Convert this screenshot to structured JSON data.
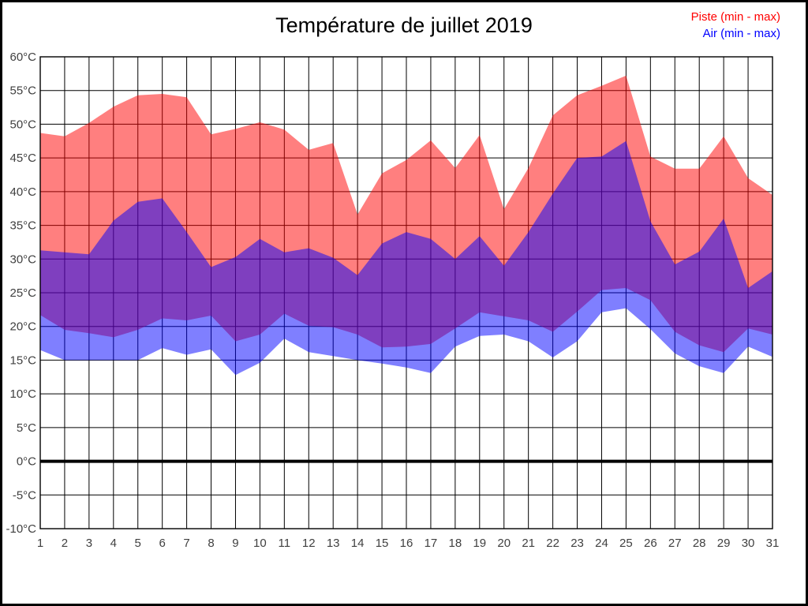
{
  "window": {
    "background": "#ffffff",
    "border_color": "#000000"
  },
  "header": {
    "title": "Température de juillet 2019"
  },
  "legend": {
    "items": [
      {
        "label": "Piste (min - max)",
        "color": "#ff0000"
      },
      {
        "label": "Air (min - max)",
        "color": "#0000ff"
      }
    ]
  },
  "chart_data": {
    "type": "area",
    "title": "Température de juillet 2019",
    "xlabel": "",
    "ylabel": "",
    "x": [
      1,
      2,
      3,
      4,
      5,
      6,
      7,
      8,
      9,
      10,
      11,
      12,
      13,
      14,
      15,
      16,
      17,
      18,
      19,
      20,
      21,
      22,
      23,
      24,
      25,
      26,
      27,
      28,
      29,
      30,
      31
    ],
    "series": [
      {
        "name": "Piste (min - max)",
        "fill": "rgba(255,0,0,0.5)",
        "legend_color": "#ff0000",
        "max": [
          48.7,
          48.2,
          50.2,
          52.6,
          54.3,
          54.5,
          54.0,
          48.5,
          49.3,
          50.3,
          49.2,
          46.2,
          47.2,
          36.6,
          42.7,
          44.7,
          47.6,
          43.5,
          48.4,
          37.4,
          43.5,
          51.3,
          54.3,
          55.7,
          57.2,
          45.2,
          43.4,
          43.4,
          48.2,
          42.0,
          39.5
        ],
        "min": [
          21.7,
          19.5,
          19.0,
          18.4,
          19.5,
          21.2,
          20.9,
          21.6,
          17.8,
          18.8,
          21.9,
          20.1,
          19.9,
          18.8,
          16.9,
          17.0,
          17.4,
          19.7,
          22.1,
          21.5,
          20.9,
          19.2,
          22.2,
          25.4,
          25.7,
          23.9,
          19.2,
          17.2,
          16.2,
          19.7,
          18.8
        ]
      },
      {
        "name": "Air (min - max)",
        "fill": "rgba(0,0,255,0.5)",
        "legend_color": "#0000ff",
        "max": [
          31.3,
          31.0,
          30.7,
          35.7,
          38.5,
          39.0,
          34.0,
          28.8,
          30.3,
          33.0,
          31.0,
          31.6,
          30.2,
          27.6,
          32.3,
          34.0,
          33.0,
          30.0,
          33.4,
          29.0,
          34.0,
          39.7,
          45.0,
          45.2,
          47.5,
          35.6,
          29.2,
          31.1,
          36.0,
          25.7,
          28.2
        ],
        "min": [
          16.5,
          15.0,
          15.0,
          15.0,
          15.0,
          16.8,
          15.8,
          16.6,
          12.8,
          14.6,
          18.2,
          16.2,
          15.6,
          15.0,
          14.5,
          13.9,
          13.1,
          17.0,
          18.6,
          18.8,
          17.8,
          15.4,
          17.8,
          22.1,
          22.7,
          19.6,
          16.0,
          14.1,
          13.1,
          17.0,
          15.5
        ]
      }
    ],
    "ylim": [
      -10,
      60
    ],
    "ytick_step": 5,
    "yticklabels": [
      "60°C",
      "55°C",
      "50°C",
      "45°C",
      "40°C",
      "35°C",
      "30°C",
      "25°C",
      "20°C",
      "15°C",
      "10°C",
      "5°C",
      "0°C",
      "-5°C",
      "-10°C"
    ],
    "xticklabels": [
      "1",
      "2",
      "3",
      "4",
      "5",
      "6",
      "7",
      "8",
      "9",
      "10",
      "11",
      "12",
      "13",
      "14",
      "15",
      "16",
      "17",
      "18",
      "19",
      "20",
      "21",
      "22",
      "23",
      "24",
      "25",
      "26",
      "27",
      "28",
      "29",
      "30",
      "31"
    ],
    "grid": true,
    "grid_color": "#000000",
    "zero_line_value": 0,
    "zero_line_width": 4,
    "tick_label_color": "#404040",
    "legend_position": "top-right"
  }
}
